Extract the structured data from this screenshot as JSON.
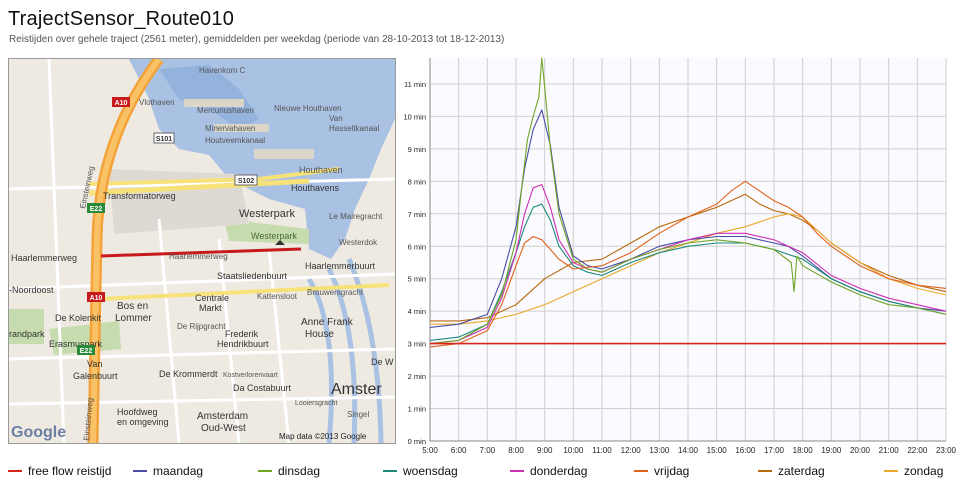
{
  "title": "TrajectSensor_Route010",
  "subtitle": "Reistijden over gehele traject (2561 meter), gemiddelden per weekdag (periode van 28-10-2013 tot 18-12-2013)",
  "map": {
    "labels": {
      "havenkom": "Havenkom C",
      "vlothaven": "Vlothaven",
      "mercuriushaven": "Mercuriushaven",
      "minervahaven": "Minervahaven",
      "nieuwe_houthaven": "Nieuwe Houthaven",
      "van_hasselt_1": "Van",
      "van_hasselt_2": "Hasseltkanaal",
      "houtveemkanaal": "Houtveemkanaal",
      "houthaven": "Houthaven",
      "houthavens": "Houthavens",
      "transformatorweg": "Transformatorweg",
      "westerpark": "Westerpark",
      "westerpark_park": "Westerpark",
      "le_mairegracht": "Le Mairegracht",
      "westerdok": "Westerdok",
      "haarlemmerweg": "Haarlemmerweg",
      "haarlemmerweg_road": "Haarlemmerweg",
      "staatsliedenbuurt": "Staatsliedenbuurt",
      "haarlemmerbuurt": "Haarlemmerbuurt",
      "noordoost": "-Noordoost",
      "bos_en": "Bos en",
      "lommer": "Lommer",
      "centrale": "Centrale",
      "markt": "Markt",
      "kattenloot": "Kattensloot",
      "brouwersgracht": "Brouwersgracht",
      "de_kolenkit": "De Kolenkit",
      "de_rijpgracht": "De Rijpgracht",
      "frederik": "Frederik",
      "hendrikbuurt": "Hendrikbuurt",
      "anne_frank": "Anne Frank",
      "huis": "House",
      "erasmuspark": "Erasmuspark",
      "randpark": "randpark",
      "van": "Van",
      "galenbuurt": "Galenbuurt",
      "de_krommerdt": "De Krommerdt",
      "kostverloren": "Kostverlorenvaart",
      "da_costabuurt": "Da Costabuurt",
      "hoofdweg": "Hoofdweg",
      "en_omgeving": "en omgeving",
      "amsterdam": "Amsterdam",
      "oud_west": "Oud-West",
      "amster": "Amster",
      "singel": "Singel",
      "de_w": "De W",
      "loolersgracht": "Looiersgracht",
      "einsteinweg": "Einsteinweg",
      "einsteinweg_south": "Einsteinweg",
      "a10_n": "A10",
      "a10_s": "A10",
      "s101": "S101",
      "s102": "S102",
      "e22_n": "E22",
      "e22_s": "E22",
      "copyright": "Map data ©2013 Google",
      "logo": "Google"
    }
  },
  "chart_data": {
    "type": "line",
    "x_ticks": [
      "5:00",
      "6:00",
      "7:00",
      "8:00",
      "9:00",
      "10:00",
      "11:00",
      "12:00",
      "13:00",
      "14:00",
      "15:00",
      "16:00",
      "17:00",
      "18:00",
      "19:00",
      "20:00",
      "21:00",
      "22:00",
      "23:00"
    ],
    "y_ticks": [
      "0 min",
      "1 min",
      "2 min",
      "3 min",
      "4 min",
      "5 min",
      "6 min",
      "7 min",
      "8 min",
      "9 min",
      "10 min",
      "11 min"
    ],
    "xlim": [
      5,
      23
    ],
    "ylim": [
      0,
      11.8
    ],
    "grid": true,
    "legend_position": "bottom",
    "series": [
      {
        "name": "free flow reistijd",
        "color": "#d9241b",
        "x": [
          5,
          23
        ],
        "y": [
          3.0,
          3.0
        ]
      },
      {
        "name": "maandag",
        "color": "#4a4fa3",
        "x": [
          5,
          6,
          7,
          7.5,
          8,
          8.3,
          8.6,
          8.9,
          9.2,
          9.5,
          10,
          10.5,
          11,
          12,
          13,
          14,
          15,
          16,
          17,
          17.5,
          18,
          19,
          20,
          21,
          22,
          23
        ],
        "y": [
          3.5,
          3.6,
          3.9,
          5.0,
          6.6,
          8.4,
          9.6,
          10.2,
          9.1,
          7.2,
          5.7,
          5.4,
          5.3,
          5.6,
          6.0,
          6.2,
          6.3,
          6.3,
          6.1,
          6.0,
          5.7,
          5.0,
          4.6,
          4.3,
          4.1,
          4.0
        ]
      },
      {
        "name": "dinsdag",
        "color": "#6fa523",
        "x": [
          5,
          6,
          7,
          7.5,
          8,
          8.2,
          8.4,
          8.6,
          8.8,
          8.9,
          9.0,
          9.2,
          9.5,
          10,
          10.5,
          11,
          12,
          13,
          14,
          15,
          16,
          17,
          17.6,
          17.7,
          17.8,
          18,
          19,
          20,
          21,
          22,
          23
        ],
        "y": [
          3.0,
          3.1,
          3.6,
          4.5,
          6.2,
          7.8,
          9.3,
          10.0,
          10.6,
          11.8,
          10.9,
          9.0,
          7.0,
          5.6,
          5.3,
          5.2,
          5.6,
          5.9,
          6.1,
          6.2,
          6.1,
          5.9,
          5.5,
          4.6,
          5.7,
          5.4,
          4.9,
          4.5,
          4.2,
          4.1,
          3.9
        ]
      },
      {
        "name": "woensdag",
        "color": "#1d8a7a",
        "x": [
          5,
          6,
          7,
          7.5,
          8,
          8.3,
          8.6,
          8.9,
          9.2,
          9.5,
          10,
          10.5,
          11,
          12,
          13,
          14,
          15,
          16,
          17,
          18,
          19,
          20,
          21,
          22,
          23
        ],
        "y": [
          3.1,
          3.2,
          3.6,
          4.6,
          5.8,
          6.6,
          7.2,
          7.3,
          6.8,
          6.0,
          5.4,
          5.2,
          5.1,
          5.5,
          5.8,
          6.0,
          6.1,
          6.1,
          5.9,
          5.6,
          5.0,
          4.6,
          4.3,
          4.1,
          3.9
        ]
      },
      {
        "name": "donderdag",
        "color": "#cf2fb4",
        "x": [
          5,
          6,
          7,
          7.5,
          8,
          8.3,
          8.6,
          8.9,
          9.2,
          9.5,
          10,
          10.5,
          11,
          12,
          13,
          14,
          15,
          16,
          17,
          18,
          19,
          20,
          21,
          22,
          23
        ],
        "y": [
          3.0,
          3.1,
          3.5,
          4.4,
          5.8,
          7.0,
          7.8,
          7.9,
          7.2,
          6.2,
          5.5,
          5.3,
          5.2,
          5.6,
          5.9,
          6.2,
          6.4,
          6.4,
          6.2,
          5.8,
          5.1,
          4.7,
          4.4,
          4.2,
          4.0
        ]
      },
      {
        "name": "vrijdag",
        "color": "#e0621c",
        "x": [
          5,
          6,
          7,
          7.5,
          8,
          8.3,
          8.6,
          8.9,
          9.2,
          9.5,
          10,
          11,
          12,
          13,
          14,
          15,
          15.5,
          16,
          16.5,
          17,
          17.5,
          18,
          18.5,
          19,
          20,
          21,
          22,
          23
        ],
        "y": [
          2.9,
          3.0,
          3.4,
          4.2,
          5.4,
          6.1,
          6.3,
          6.2,
          5.9,
          5.6,
          5.3,
          5.4,
          5.8,
          6.4,
          6.9,
          7.3,
          7.7,
          8.0,
          7.7,
          7.4,
          7.2,
          6.9,
          6.4,
          6.0,
          5.4,
          5.0,
          4.8,
          4.7
        ]
      },
      {
        "name": "zaterdag",
        "color": "#b9680c",
        "x": [
          5,
          6,
          7,
          8,
          9,
          10,
          11,
          12,
          13,
          14,
          15,
          15.5,
          16,
          16.5,
          17,
          17.5,
          18,
          18.5,
          19,
          20,
          21,
          22,
          23
        ],
        "y": [
          3.7,
          3.7,
          3.8,
          4.2,
          5.0,
          5.5,
          5.6,
          6.1,
          6.6,
          6.9,
          7.2,
          7.4,
          7.6,
          7.3,
          7.1,
          7.0,
          6.8,
          6.5,
          6.1,
          5.5,
          5.1,
          4.8,
          4.6
        ]
      },
      {
        "name": "zondag",
        "color": "#e9a92a",
        "x": [
          5,
          6,
          7,
          8,
          9,
          10,
          11,
          12,
          13,
          14,
          15,
          16,
          17,
          17.5,
          18,
          18.5,
          19,
          20,
          21,
          22,
          23
        ],
        "y": [
          3.6,
          3.6,
          3.7,
          3.9,
          4.2,
          4.6,
          5.0,
          5.4,
          5.8,
          6.1,
          6.4,
          6.6,
          6.9,
          7.0,
          6.9,
          6.5,
          6.1,
          5.5,
          5.0,
          4.7,
          4.5
        ]
      }
    ]
  }
}
